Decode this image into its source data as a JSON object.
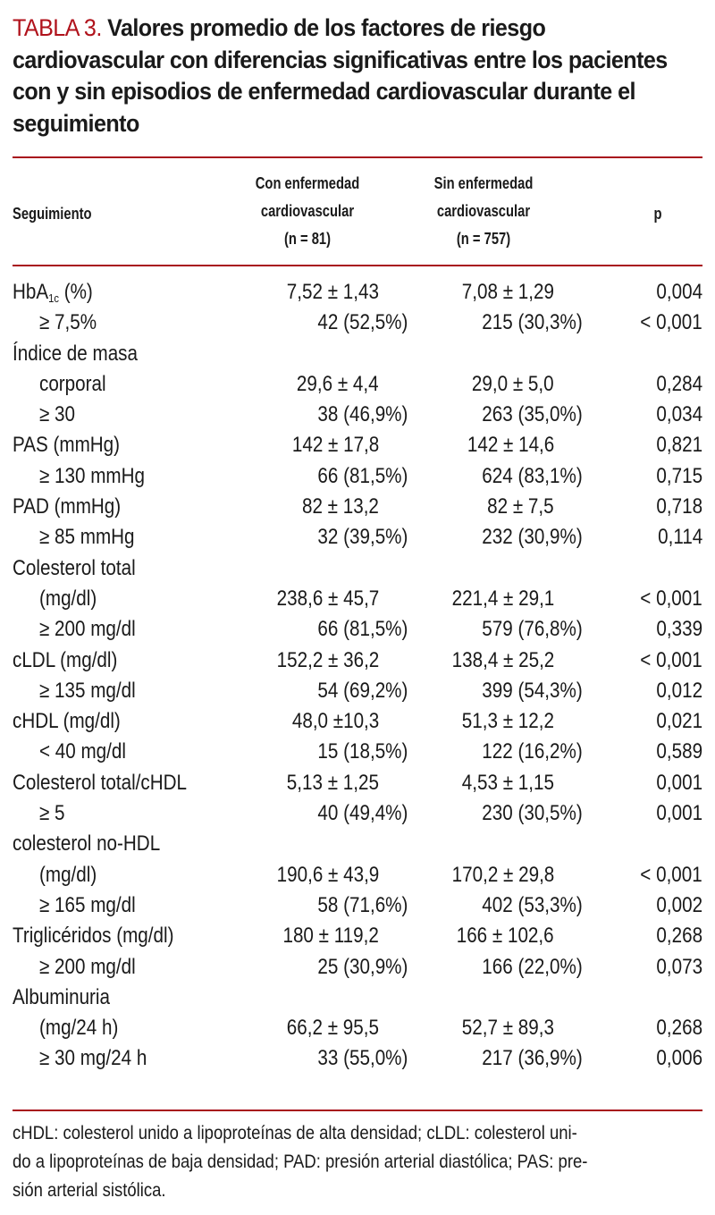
{
  "title": {
    "label": "TABLA 3.",
    "text": "Valores promedio de los factores de riesgo cardiovascular con diferencias significativas entre los pacientes con y sin episodios de enfermedad cardiovascular durante el seguimiento"
  },
  "header": {
    "col0": "Seguimiento",
    "col1_line1": "Con enfermedad",
    "col1_line2": "cardiovascular",
    "col1_line3": "(n = 81)",
    "col2_line1": "Sin enfermedad",
    "col2_line2": "cardiovascular",
    "col2_line3": "(n = 757)",
    "col3": "p"
  },
  "rows": [
    {
      "label": "HbA",
      "sub": "1c",
      "label_after": " (%)",
      "indent": false,
      "con": "7,52 ± 1,43",
      "sin": "7,08 ± 1,29",
      "p": "0,004",
      "type": "mean"
    },
    {
      "label": "≥ 7,5%",
      "indent": true,
      "con": "42 (52,5%)",
      "sin": "215 (30,3%)",
      "p": "< 0,001",
      "type": "n"
    },
    {
      "label": "Índice de masa",
      "indent": false,
      "con": "",
      "sin": "",
      "p": "",
      "type": "head"
    },
    {
      "label": "corporal",
      "indent": true,
      "con": "29,6 ± 4,4",
      "sin": "29,0 ± 5,0",
      "p": "0,284",
      "type": "mean"
    },
    {
      "label": "≥ 30",
      "indent": true,
      "con": "38 (46,9%)",
      "sin": "263 (35,0%)",
      "p": "0,034",
      "type": "n"
    },
    {
      "label": "PAS (mmHg)",
      "indent": false,
      "con": "142 ± 17,8",
      "sin": "142 ± 14,6",
      "p": "0,821",
      "type": "mean"
    },
    {
      "label": "≥ 130 mmHg",
      "indent": true,
      "con": "66 (81,5%)",
      "sin": "624 (83,1%)",
      "p": "0,715",
      "type": "n"
    },
    {
      "label": "PAD (mmHg)",
      "indent": false,
      "con": "82 ± 13,2",
      "sin": "82 ± 7,5",
      "p": "0,718",
      "type": "mean"
    },
    {
      "label": "≥ 85 mmHg",
      "indent": true,
      "con": "32 (39,5%)",
      "sin": "232 (30,9%)",
      "p": "0,114",
      "type": "n"
    },
    {
      "label": "Colesterol total",
      "indent": false,
      "con": "",
      "sin": "",
      "p": "",
      "type": "head"
    },
    {
      "label": "(mg/dl)",
      "indent": true,
      "con": "238,6 ± 45,7",
      "sin": "221,4 ± 29,1",
      "p": "< 0,001",
      "type": "mean"
    },
    {
      "label": "≥ 200 mg/dl",
      "indent": true,
      "con": "66 (81,5%)",
      "sin": "579 (76,8%)",
      "p": "0,339",
      "type": "n"
    },
    {
      "label": "cLDL (mg/dl)",
      "indent": false,
      "con": "152,2 ± 36,2",
      "sin": "138,4 ± 25,2",
      "p": "< 0,001",
      "type": "mean"
    },
    {
      "label": "≥ 135 mg/dl",
      "indent": true,
      "con": "54 (69,2%)",
      "sin": "399 (54,3%)",
      "p": "0,012",
      "type": "n"
    },
    {
      "label": "cHDL (mg/dl)",
      "indent": false,
      "con": "48,0 ±10,3",
      "sin": "51,3 ± 12,2",
      "p": "0,021",
      "type": "mean"
    },
    {
      "label": "< 40 mg/dl",
      "indent": true,
      "con": "15 (18,5%)",
      "sin": "122 (16,2%)",
      "p": "0,589",
      "type": "n"
    },
    {
      "label": "Colesterol total/cHDL",
      "indent": false,
      "con": "5,13 ± 1,25",
      "sin": "4,53 ± 1,15",
      "p": "0,001",
      "type": "mean"
    },
    {
      "label": "≥ 5",
      "indent": true,
      "con": "40 (49,4%)",
      "sin": "230 (30,5%)",
      "p": "0,001",
      "type": "n"
    },
    {
      "label": "colesterol no-HDL",
      "indent": false,
      "con": "",
      "sin": "",
      "p": "",
      "type": "head"
    },
    {
      "label": "(mg/dl)",
      "indent": true,
      "con": "190,6 ± 43,9",
      "sin": "170,2 ± 29,8",
      "p": "< 0,001",
      "type": "mean"
    },
    {
      "label": "≥ 165 mg/dl",
      "indent": true,
      "con": "58 (71,6%)",
      "sin": "402 (53,3%)",
      "p": "0,002",
      "type": "n"
    },
    {
      "label": "Triglicéridos (mg/dl)",
      "indent": false,
      "con": "180 ± 119,2",
      "sin": "166 ± 102,6",
      "p": "0,268",
      "type": "mean"
    },
    {
      "label": "≥ 200 mg/dl",
      "indent": true,
      "con": "25 (30,9%)",
      "sin": "166 (22,0%)",
      "p": "0,073",
      "type": "n"
    },
    {
      "label": "Albuminuria",
      "indent": false,
      "con": "",
      "sin": "",
      "p": "",
      "type": "head"
    },
    {
      "label": "(mg/24 h)",
      "indent": true,
      "con": "66,2 ± 95,5",
      "sin": "52,7 ± 89,3",
      "p": "0,268",
      "type": "mean"
    },
    {
      "label": "≥ 30 mg/24 h",
      "indent": true,
      "con": "33 (55,0%)",
      "sin": "217 (36,9%)",
      "p": "0,006",
      "type": "n"
    }
  ],
  "footnote": {
    "line1": "cHDL: colesterol unido a lipoproteínas de alta densidad; cLDL: colesterol uni-",
    "line2": "do a lipoproteínas de baja densidad; PAD: presión arterial diastólica; PAS: pre-",
    "line3": "sión arterial sistólica."
  },
  "colors": {
    "accent": "#a8101c",
    "label": "#b0121b",
    "text": "#1a1a1a"
  }
}
